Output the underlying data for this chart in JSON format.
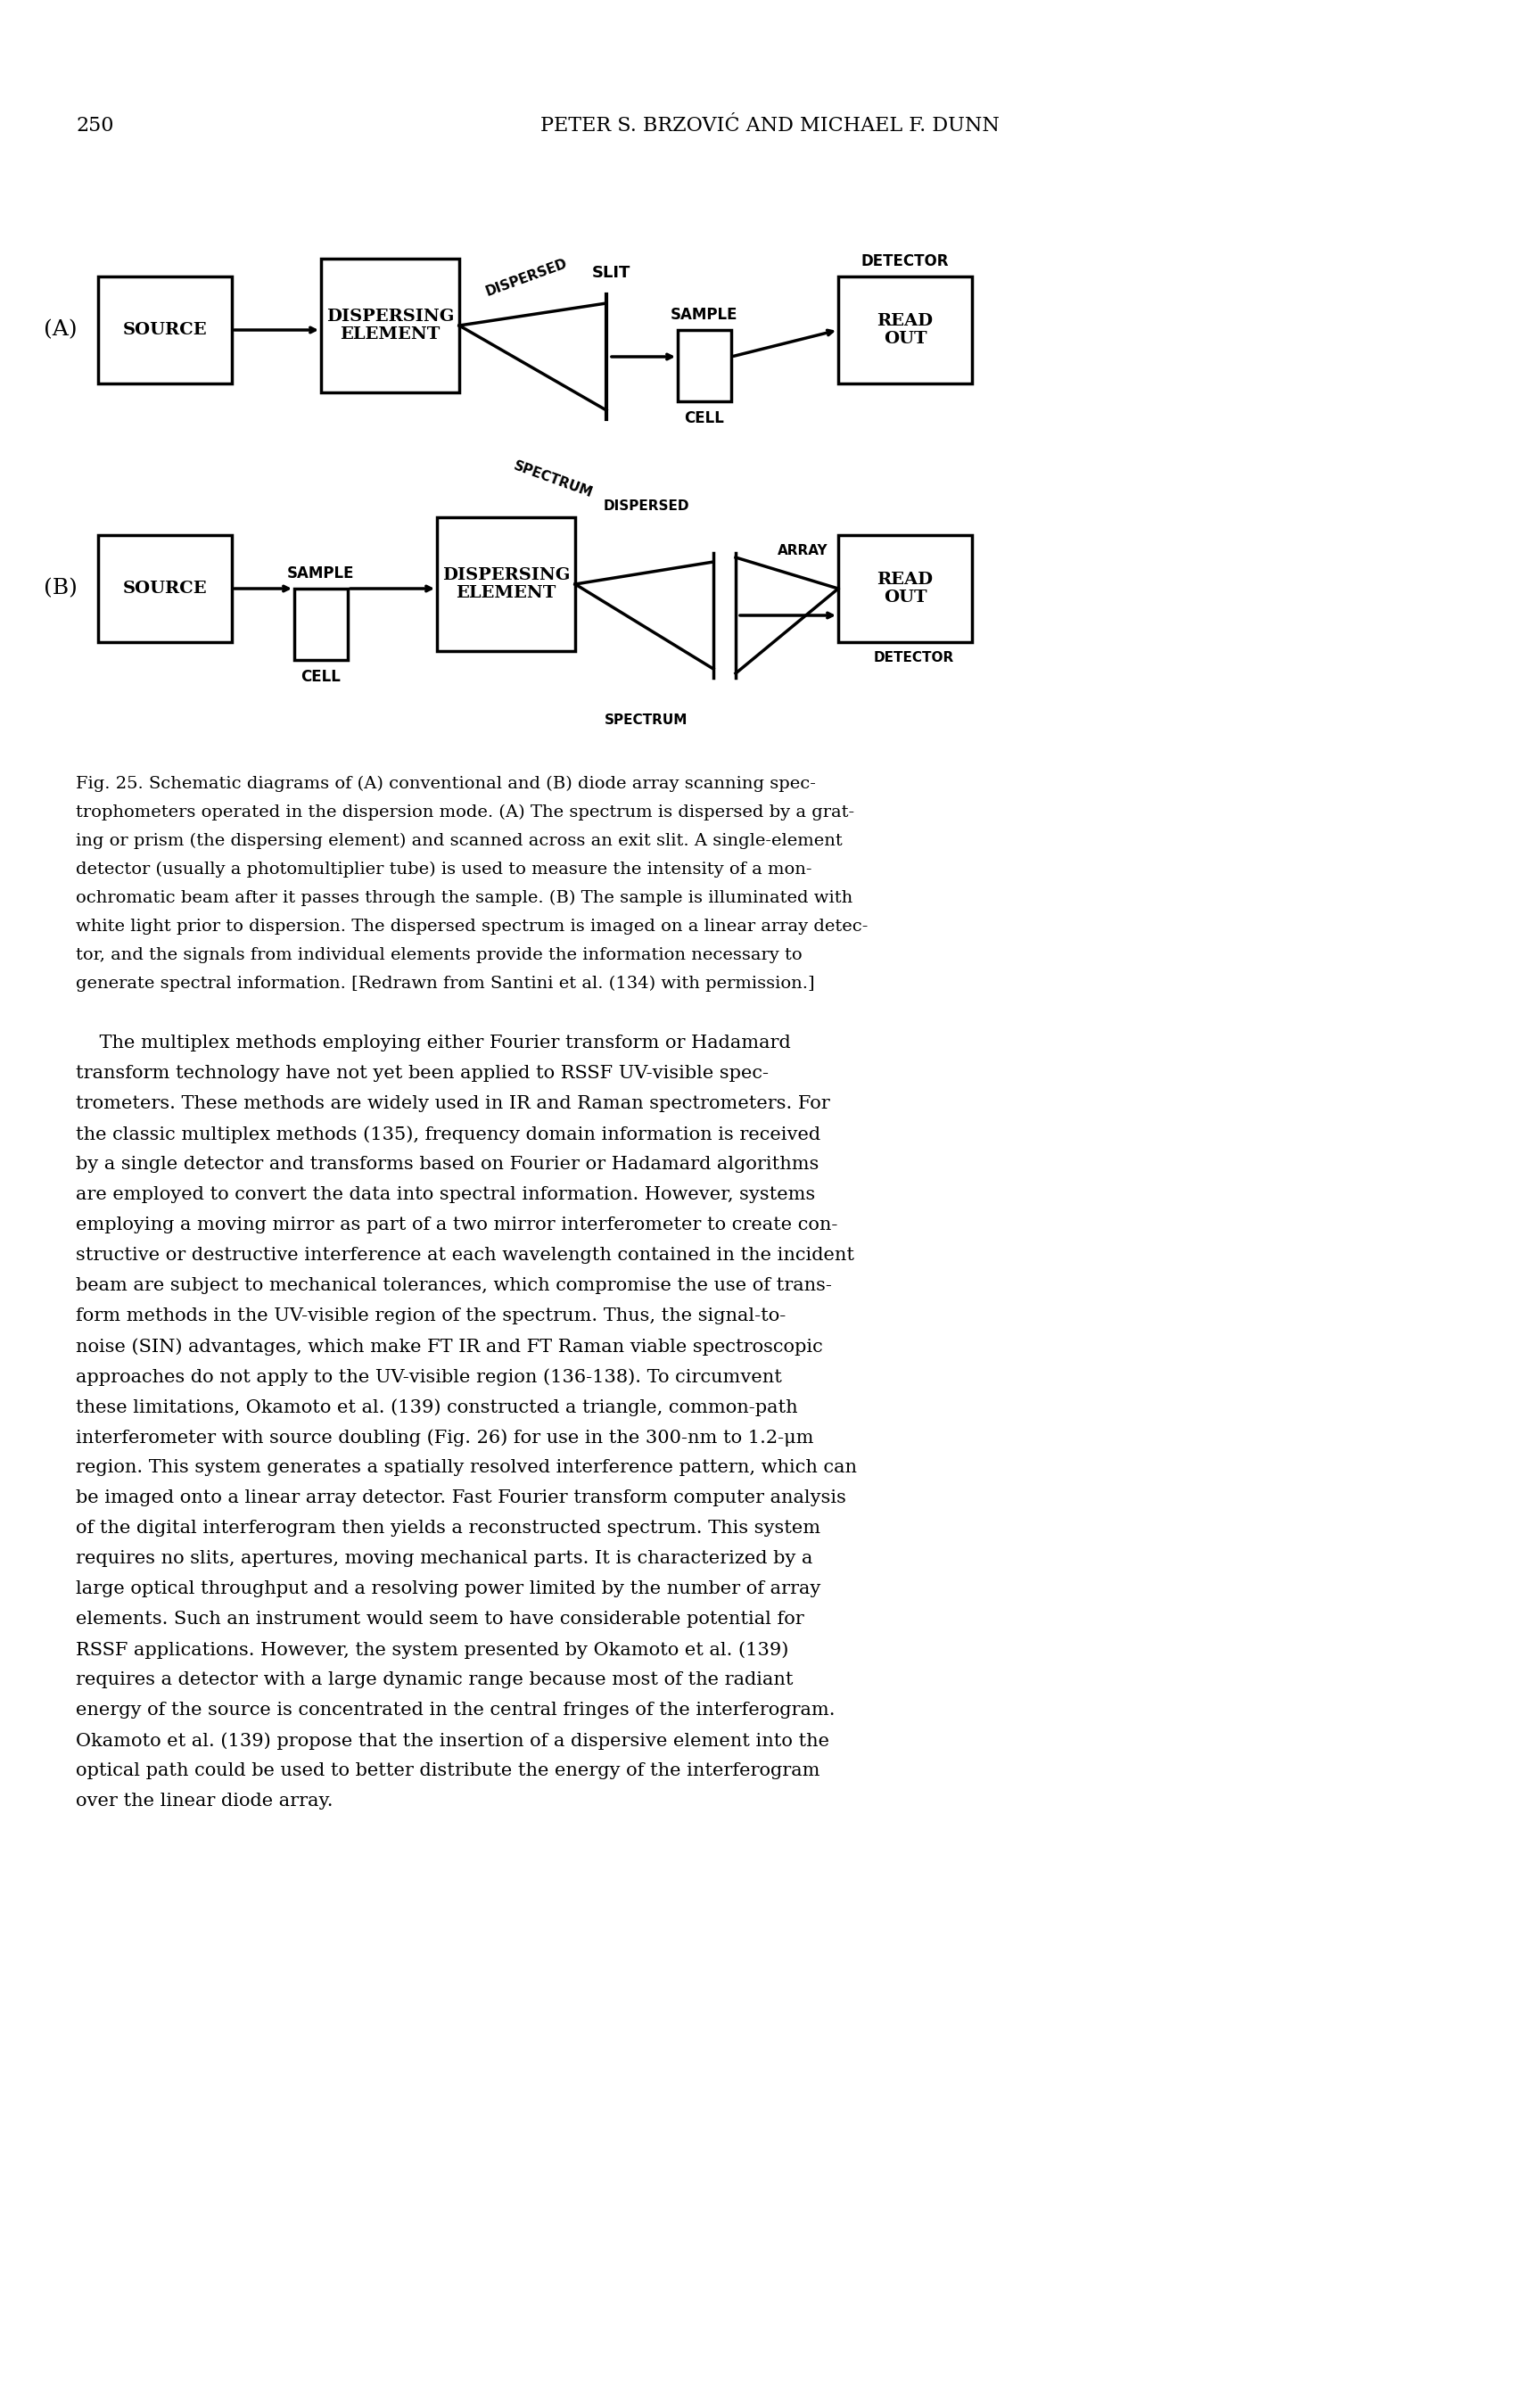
{
  "page_number": "250",
  "header": "PETER S. BRZOVIĆ AND MICHAEL F. DUNN",
  "background_color": "#ffffff",
  "fig_caption": "Fig. 25. Schematic diagrams of (A) conventional and (B) diode array scanning spectrophometers operated in the dispersion mode. (A) The spectrum is dispersed by a grating or prism (the dispersing element) and scanned across an exit slit. A single-element detector (usually a photomultiplier tube) is used to measure the intensity of a monochromatic beam after it passes through the sample. (B) The sample is illuminated with white light prior to dispersion. The dispersed spectrum is imaged on a linear array detector, and the signals from individual elements provide the information necessary to generate spectral information. [Redrawn from Santini et al. (134) with permission.]",
  "body_text": "The multiplex methods employing either Fourier transform or Hadamard transform technology have not yet been applied to RSSF UV-visible spectrometers. These methods are widely used in IR and Raman spectrometers. For the classic multiplex methods (135), frequency domain information is received by a single detector and transforms based on Fourier or Hadamard algorithms are employed to convert the data into spectral information. However, systems employing a moving mirror as part of a two mirror interferometer to create constructive or destructive interference at each wavelength contained in the incident beam are subject to mechanical tolerances, which compromise the use of transform methods in the UV-visible region of the spectrum. Thus, the signal-to-noise (SIN) advantages, which make FT IR and FT Raman viable spectroscopic approaches do not apply to the UV-visible region (136-138). To circumvent these limitations, Okamoto et al. (139) constructed a triangle, common-path interferometer with source doubling (Fig. 26) for use in the 300-nm to 1.2-μm region. This system generates a spatially resolved interference pattern, which can be imaged onto a linear array detector. Fast Fourier transform computer analysis of the digital interferogram then yields a reconstructed spectrum. This system requires no slits, apertures, moving mechanical parts. It is characterized by a large optical throughput and a resolving power limited by the number of array elements. Such an instrument would seem to have considerable potential for RSSF applications. However, the system presented by Okamoto et al. (139) requires a detector with a large dynamic range because most of the radiant energy of the source is concentrated in the central fringes of the interferogram. Okamoto et al. (139) propose that the insertion of a dispersive element into the optical path could be used to better distribute the energy of the interferogram over the linear diode array."
}
